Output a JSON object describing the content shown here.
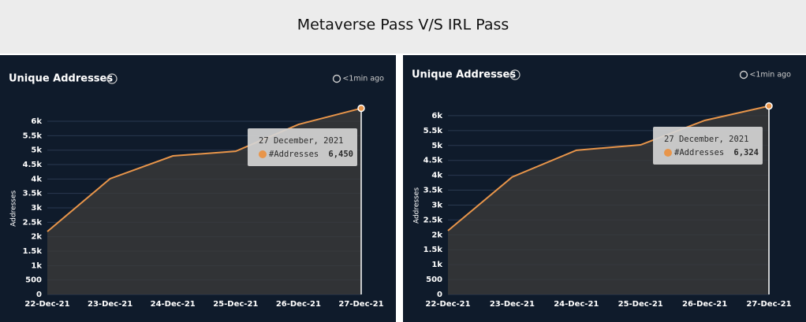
{
  "title": "Metaverse Pass V/S IRL Pass",
  "chart_data": [
    {
      "type": "area",
      "title": "Unique Addresses",
      "status": "<1min ago",
      "y_label": "Addresses",
      "categories": [
        "22-Dec-21",
        "23-Dec-21",
        "24-Dec-21",
        "25-Dec-21",
        "26-Dec-21",
        "27-Dec-21"
      ],
      "series": [
        {
          "name": "#Addresses",
          "color": "#e8954a",
          "values": [
            2180,
            4010,
            4800,
            4960,
            5890,
            6450
          ]
        }
      ],
      "ylim": [
        0,
        6500
      ],
      "yticks": [
        0,
        500,
        {
          "value": 1000,
          "label": "1k"
        },
        {
          "value": 1500,
          "label": "1.5k"
        },
        {
          "value": 2000,
          "label": "2k"
        },
        {
          "value": 2500,
          "label": "2.5k"
        },
        {
          "value": 3000,
          "label": "3k"
        },
        {
          "value": 3500,
          "label": "3.5k"
        },
        {
          "value": 4000,
          "label": "4k"
        },
        {
          "value": 4500,
          "label": "4.5k"
        },
        {
          "value": 5000,
          "label": "5k"
        },
        {
          "value": 5500,
          "label": "5.5k"
        },
        {
          "value": 6000,
          "label": "6k"
        }
      ],
      "grid": true,
      "tooltip": {
        "title": "27 December, 2021",
        "label": "6,450"
      }
    },
    {
      "type": "area",
      "title": "Unique Addresses",
      "status": "<1min ago",
      "y_label": "Addresses",
      "categories": [
        "22-Dec-21",
        "23-Dec-21",
        "24-Dec-21",
        "25-Dec-21",
        "26-Dec-21",
        "27-Dec-21"
      ],
      "series": [
        {
          "name": "#Addresses",
          "color": "#e8954a",
          "values": [
            2140,
            3940,
            4840,
            5020,
            5840,
            6324
          ]
        }
      ],
      "ylim": [
        0,
        6500
      ],
      "yticks": [
        0,
        500,
        {
          "value": 1000,
          "label": "1k"
        },
        {
          "value": 1500,
          "label": "1.5k"
        },
        {
          "value": 2000,
          "label": "2k"
        },
        {
          "value": 2500,
          "label": "2.5k"
        },
        {
          "value": 3000,
          "label": "3k"
        },
        {
          "value": 3500,
          "label": "3.5k"
        },
        {
          "value": 4000,
          "label": "4k"
        },
        {
          "value": 4500,
          "label": "4.5k"
        },
        {
          "value": 5000,
          "label": "5k"
        },
        {
          "value": 5500,
          "label": "5.5k"
        },
        {
          "value": 6000,
          "label": "6k"
        }
      ],
      "grid": true,
      "tooltip": {
        "title": "27 December, 2021",
        "label": "6,324"
      }
    }
  ]
}
